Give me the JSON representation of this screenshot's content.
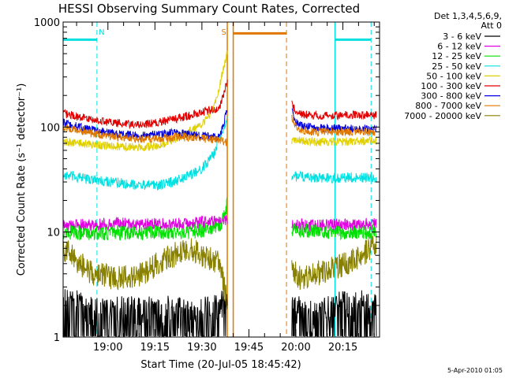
{
  "chart_data": {
    "type": "line",
    "title": "HESSI Observing Summary Count Rates, Corrected",
    "xlabel": "Start Time (20-Jul-05 18:45:42)",
    "ylabel": "Corrected Count Rate (s⁻¹ detector⁻¹)",
    "yscale": "log",
    "ylim": [
      1,
      1000
    ],
    "xlim": [
      0,
      101
    ],
    "x_unit": "minutes after 18:45:42",
    "x_ticks": [
      {
        "label": "19:00",
        "value": 14.3
      },
      {
        "label": "19:15",
        "value": 29.3
      },
      {
        "label": "19:30",
        "value": 44.3
      },
      {
        "label": "19:45",
        "value": 59.3
      },
      {
        "label": "20:00",
        "value": 74.3
      },
      {
        "label": "20:15",
        "value": 89.3
      }
    ],
    "y_ticks": [
      {
        "label": "1",
        "value": 1
      },
      {
        "label": "10",
        "value": 10
      },
      {
        "label": "100",
        "value": 100
      },
      {
        "label": "1000",
        "value": 1000
      }
    ],
    "legend_header": [
      "Det 1,3,4,5,6,9,",
      "Att 0"
    ],
    "legend_position": "right",
    "grid": false,
    "series": [
      {
        "name": "3 - 6 keV",
        "color": "#000000",
        "segments": [
          {
            "x": [
              0,
              10,
              20,
              30,
              40,
              52.5
            ],
            "y": [
              2.5,
              1.8,
              1.9,
              2.0,
              1.8,
              2.2
            ]
          },
          {
            "x": [
              73,
              80,
              90,
              100
            ],
            "y": [
              2.0,
              1.7,
              2.2,
              2.1
            ]
          }
        ]
      },
      {
        "name": "6 - 12 keV",
        "color": "#e000e0",
        "segments": [
          {
            "x": [
              0,
              10,
              20,
              30,
              40,
              52.5
            ],
            "y": [
              11.5,
              11.8,
              12.0,
              11.8,
              12.0,
              13.0
            ]
          },
          {
            "x": [
              73,
              80,
              90,
              100
            ],
            "y": [
              11.8,
              11.5,
              11.8,
              12.0
            ]
          }
        ]
      },
      {
        "name": "12 - 25 keV",
        "color": "#00e000",
        "segments": [
          {
            "x": [
              0,
              10,
              20,
              30,
              40,
              50,
              52.5
            ],
            "y": [
              10.0,
              9.8,
              9.8,
              10.0,
              10.0,
              11.0,
              19.0
            ]
          },
          {
            "x": [
              73,
              80,
              90,
              100
            ],
            "y": [
              10.5,
              10.2,
              10.0,
              10.0
            ]
          }
        ]
      },
      {
        "name": "25 - 50 keV",
        "color": "#00e0e0",
        "segments": [
          {
            "x": [
              0,
              5,
              15,
              25,
              30,
              35,
              40,
              45,
              48,
              50,
              52.5
            ],
            "y": [
              35,
              33,
              30,
              28,
              28,
              30,
              34,
              42,
              55,
              80,
              130
            ]
          },
          {
            "x": [
              73,
              80,
              90,
              100
            ],
            "y": [
              34,
              33,
              33,
              33
            ]
          }
        ]
      },
      {
        "name": "50 - 100 keV",
        "color": "#e0d000",
        "segments": [
          {
            "x": [
              0,
              5,
              15,
              25,
              30,
              35,
              40,
              45,
              48,
              50,
              52.5
            ],
            "y": [
              73,
              70,
              66,
              64,
              66,
              75,
              90,
              110,
              150,
              250,
              550
            ]
          },
          {
            "x": [
              73,
              80,
              90,
              100
            ],
            "y": [
              75,
              72,
              73,
              74
            ]
          }
        ]
      },
      {
        "name": "100 - 300 keV",
        "color": "#e00000",
        "segments": [
          {
            "x": [
              0,
              5,
              15,
              25,
              30,
              35,
              40,
              45,
              50,
              52.5
            ],
            "y": [
              135,
              125,
              110,
              105,
              110,
              118,
              128,
              140,
              150,
              280
            ]
          },
          {
            "x": [
              73,
              74,
              75,
              80,
              90,
              100
            ],
            "y": [
              165,
              145,
              135,
              128,
              130,
              130
            ]
          }
        ]
      },
      {
        "name": "300 - 800 keV",
        "color": "#0000e0",
        "segments": [
          {
            "x": [
              0,
              5,
              15,
              25,
              30,
              35,
              40,
              45,
              50,
              52.5
            ],
            "y": [
              110,
              100,
              88,
              82,
              85,
              88,
              86,
              82,
              80,
              150
            ]
          },
          {
            "x": [
              73,
              74,
              75,
              80,
              90,
              100
            ],
            "y": [
              140,
              115,
              105,
              98,
              97,
              96
            ]
          }
        ]
      },
      {
        "name": "800 - 7000 keV",
        "color": "#e07800",
        "segments": [
          {
            "x": [
              0,
              5,
              15,
              25,
              30,
              35,
              40,
              45,
              50,
              52.5
            ],
            "y": [
              100,
              92,
              82,
              77,
              78,
              80,
              80,
              78,
              76,
              70
            ]
          },
          {
            "x": [
              73,
              74,
              75,
              80,
              90,
              100
            ],
            "y": [
              125,
              105,
              95,
              90,
              90,
              90
            ]
          }
        ]
      },
      {
        "name": "7000 - 20000 keV",
        "color": "#888000",
        "segments": [
          {
            "x": [
              0,
              2,
              5,
              10,
              15,
              20,
              25,
              30,
              35,
              40,
              45,
              50,
              52.5
            ],
            "y": [
              7.0,
              6.5,
              5.0,
              4.0,
              3.7,
              3.7,
              4.0,
              5.0,
              6.0,
              7.0,
              6.0,
              5.0,
              2.0
            ]
          },
          {
            "x": [
              73,
              75,
              80,
              85,
              90,
              95,
              100
            ],
            "y": [
              5.0,
              3.6,
              3.9,
              4.5,
              5.0,
              6.0,
              7.5
            ]
          }
        ]
      }
    ],
    "annotations": [
      {
        "label": "N",
        "x": 12.3,
        "color": "#00e0e0",
        "bars": [
          {
            "x": [
              0,
              10.8
            ],
            "y": 680
          }
        ],
        "dashed_lines": [
          10.8
        ],
        "solid_lines": []
      },
      {
        "label": "S",
        "x": 51.3,
        "color": "#e07800",
        "bars": [
          {
            "x": [
              54.3,
              71.3
            ],
            "y": 780
          }
        ],
        "dashed_lines": [
          71.3
        ],
        "solid_lines": [
          52.4,
          54.3
        ]
      },
      {
        "label": "",
        "x": 0,
        "color": "#00e0e0",
        "bars": [
          {
            "x": [
              86.8,
              98.3
            ],
            "y": 680
          }
        ],
        "dashed_lines": [
          98.3
        ],
        "solid_lines": [
          86.8
        ]
      }
    ]
  },
  "footer": {
    "date": "5-Apr-2010 01:05"
  }
}
